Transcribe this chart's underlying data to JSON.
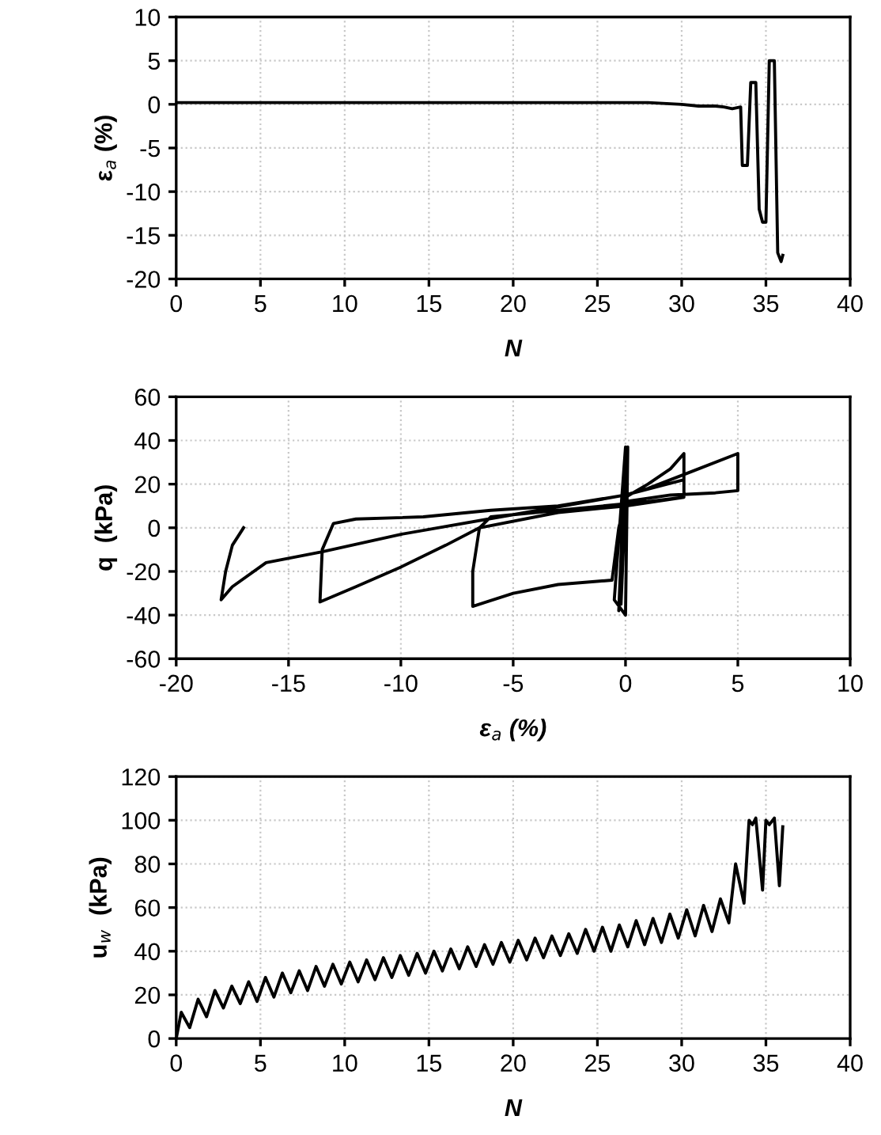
{
  "chart_data": [
    {
      "type": "line",
      "xlabel": "N",
      "ylabel": "ε$_{a}$ (%)",
      "xlim": [
        0,
        40
      ],
      "ylim": [
        -20,
        10
      ],
      "xticks": [
        0,
        5,
        10,
        15,
        20,
        25,
        30,
        35,
        40
      ],
      "yticks": [
        -20,
        -15,
        -10,
        -5,
        0,
        5,
        10
      ],
      "grid": true,
      "marker": "none",
      "line_style": "solid",
      "series": [
        {
          "color": "#000000",
          "x": [
            0,
            2,
            4,
            6,
            8,
            10,
            12,
            14,
            16,
            18,
            20,
            22,
            24,
            26,
            28,
            30,
            31,
            32,
            32.5,
            33,
            33.5,
            33.6,
            33.9,
            34.1,
            34.4,
            34.6,
            34.8,
            35.0,
            35.2,
            35.5,
            35.7,
            35.9,
            36.0
          ],
          "values": [
            0.2,
            0.2,
            0.2,
            0.2,
            0.2,
            0.2,
            0.2,
            0.2,
            0.2,
            0.2,
            0.2,
            0.2,
            0.2,
            0.2,
            0.2,
            0,
            -0.2,
            -0.2,
            -0.3,
            -0.5,
            -0.3,
            -7,
            -7,
            2.5,
            2.5,
            -12,
            -13.5,
            -13.5,
            5,
            5,
            -17,
            -18,
            -17.3
          ]
        }
      ]
    },
    {
      "type": "line",
      "xlabel": "ε$_{a}$ (%)",
      "ylabel": "q  (kPa)",
      "xlim": [
        -20,
        10
      ],
      "ylim": [
        -60,
        60
      ],
      "xticks": [
        -20,
        -15,
        -10,
        -5,
        0,
        5,
        10
      ],
      "yticks": [
        -60,
        -40,
        -20,
        0,
        20,
        40,
        60
      ],
      "grid": true,
      "marker": "none",
      "line_style": "solid",
      "series": [
        {
          "color": "#000000",
          "x": [
            0,
            0.1,
            -0.2,
            0.05,
            -0.3,
            0,
            -0.5,
            0,
            0.1,
            0,
            1,
            2,
            2.6,
            2.6,
            1,
            0,
            -3,
            -6,
            -6.5,
            -6.8,
            -6.8,
            -5,
            -3,
            -0.6,
            -0.3,
            0,
            2,
            4,
            5,
            5,
            3,
            1,
            0,
            -3,
            -6,
            -9,
            -12,
            -13,
            -13.5,
            -13.6,
            -12,
            -10,
            -8,
            -6.5,
            -3,
            0,
            2.6,
            2.6,
            0,
            -5,
            -10,
            -13.5,
            -16,
            -17.5,
            -18,
            -17.8,
            -17.5,
            -17
          ],
          "values": [
            0,
            37,
            -35,
            35,
            -38,
            37,
            -33,
            -40,
            36,
            14,
            20,
            27,
            34,
            14,
            12,
            11,
            8,
            5,
            0,
            -20,
            -36,
            -30,
            -26,
            -24,
            0,
            12,
            15,
            16,
            17,
            34,
            26,
            18,
            15,
            10,
            8,
            5,
            4,
            2,
            -10,
            -34,
            -27,
            -18,
            -8,
            0,
            7,
            10,
            14,
            22,
            15,
            6,
            -3,
            -11,
            -16,
            -27,
            -33,
            -20,
            -8,
            0
          ]
        }
      ]
    },
    {
      "type": "line",
      "xlabel": "N",
      "ylabel": "u$_{w}$  (kPa)",
      "xlim": [
        0,
        40
      ],
      "ylim": [
        0,
        120
      ],
      "xticks": [
        0,
        5,
        10,
        15,
        20,
        25,
        30,
        35,
        40
      ],
      "yticks": [
        0,
        20,
        40,
        60,
        80,
        100,
        120
      ],
      "grid": true,
      "marker": "none",
      "line_style": "solid",
      "series": [
        {
          "color": "#000000",
          "x": [
            0,
            0.3,
            0.8,
            1.3,
            1.8,
            2.3,
            2.8,
            3.3,
            3.8,
            4.3,
            4.8,
            5.3,
            5.8,
            6.3,
            6.8,
            7.3,
            7.8,
            8.3,
            8.8,
            9.3,
            9.8,
            10.3,
            10.8,
            11.3,
            11.8,
            12.3,
            12.8,
            13.3,
            13.8,
            14.3,
            14.8,
            15.3,
            15.8,
            16.3,
            16.8,
            17.3,
            17.8,
            18.3,
            18.8,
            19.3,
            19.8,
            20.3,
            20.8,
            21.3,
            21.8,
            22.3,
            22.8,
            23.3,
            23.8,
            24.3,
            24.8,
            25.3,
            25.8,
            26.3,
            26.8,
            27.3,
            27.8,
            28.3,
            28.8,
            29.3,
            29.8,
            30.3,
            30.8,
            31.3,
            31.8,
            32.3,
            32.8,
            33.2,
            33.7,
            34.0,
            34.2,
            34.4,
            34.8,
            35.0,
            35.2,
            35.5,
            35.8,
            36.0
          ],
          "values": [
            0,
            12,
            5,
            18,
            10,
            22,
            14,
            24,
            16,
            26,
            17,
            28,
            19,
            30,
            21,
            31,
            22,
            33,
            24,
            34,
            25,
            35,
            26,
            36,
            27,
            37,
            28,
            38,
            29,
            39,
            30,
            40,
            31,
            41,
            32,
            42,
            33,
            43,
            34,
            44,
            35,
            45,
            36,
            46,
            37,
            47,
            38,
            48,
            39,
            50,
            40,
            51,
            40,
            52,
            42,
            54,
            43,
            55,
            44,
            57,
            46,
            59,
            47,
            61,
            49,
            64,
            53,
            80,
            62,
            100,
            98,
            101,
            68,
            100,
            98,
            101,
            70,
            97
          ]
        }
      ]
    }
  ]
}
